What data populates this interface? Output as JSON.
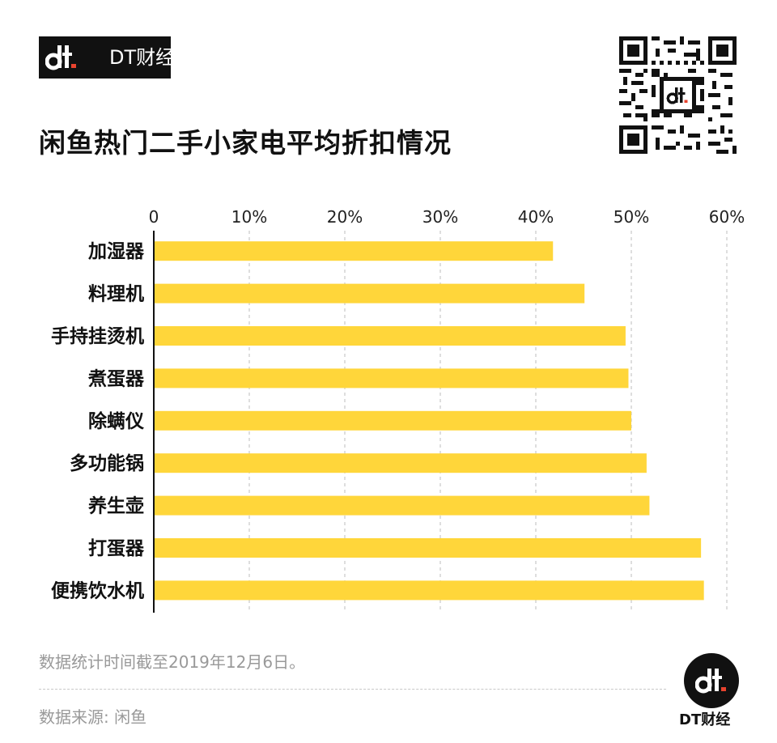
{
  "brand": {
    "name": "DT财经",
    "logo_icon": "dt-logo-icon",
    "qr_icon": "qr-code-icon"
  },
  "title": "闲鱼热门二手小家电平均折扣情况",
  "colors": {
    "bar": "#FFD63A",
    "grid": "#bdbdbd",
    "accent": "#E8432E",
    "dark": "#111111"
  },
  "chart_data": {
    "type": "bar",
    "orientation": "horizontal",
    "categories": [
      "加湿器",
      "料理机",
      "手持挂烫机",
      "煮蛋器",
      "除螨仪",
      "多功能锅",
      "养生壶",
      "打蛋器",
      "便携饮水机"
    ],
    "values": [
      41.8,
      45.1,
      49.4,
      49.7,
      50.0,
      51.6,
      51.9,
      57.3,
      57.6
    ],
    "unit": "%",
    "xlim": [
      0,
      60
    ],
    "xticks": [
      "0",
      "10%",
      "20%",
      "30%",
      "40%",
      "50%",
      "60%"
    ],
    "xaxis_position": "top",
    "grid": true,
    "legend": "none"
  },
  "footer": {
    "note": "数据统计时间截至2019年12月6日。",
    "source": "数据来源: 闲鱼",
    "brand": "DT财经"
  }
}
